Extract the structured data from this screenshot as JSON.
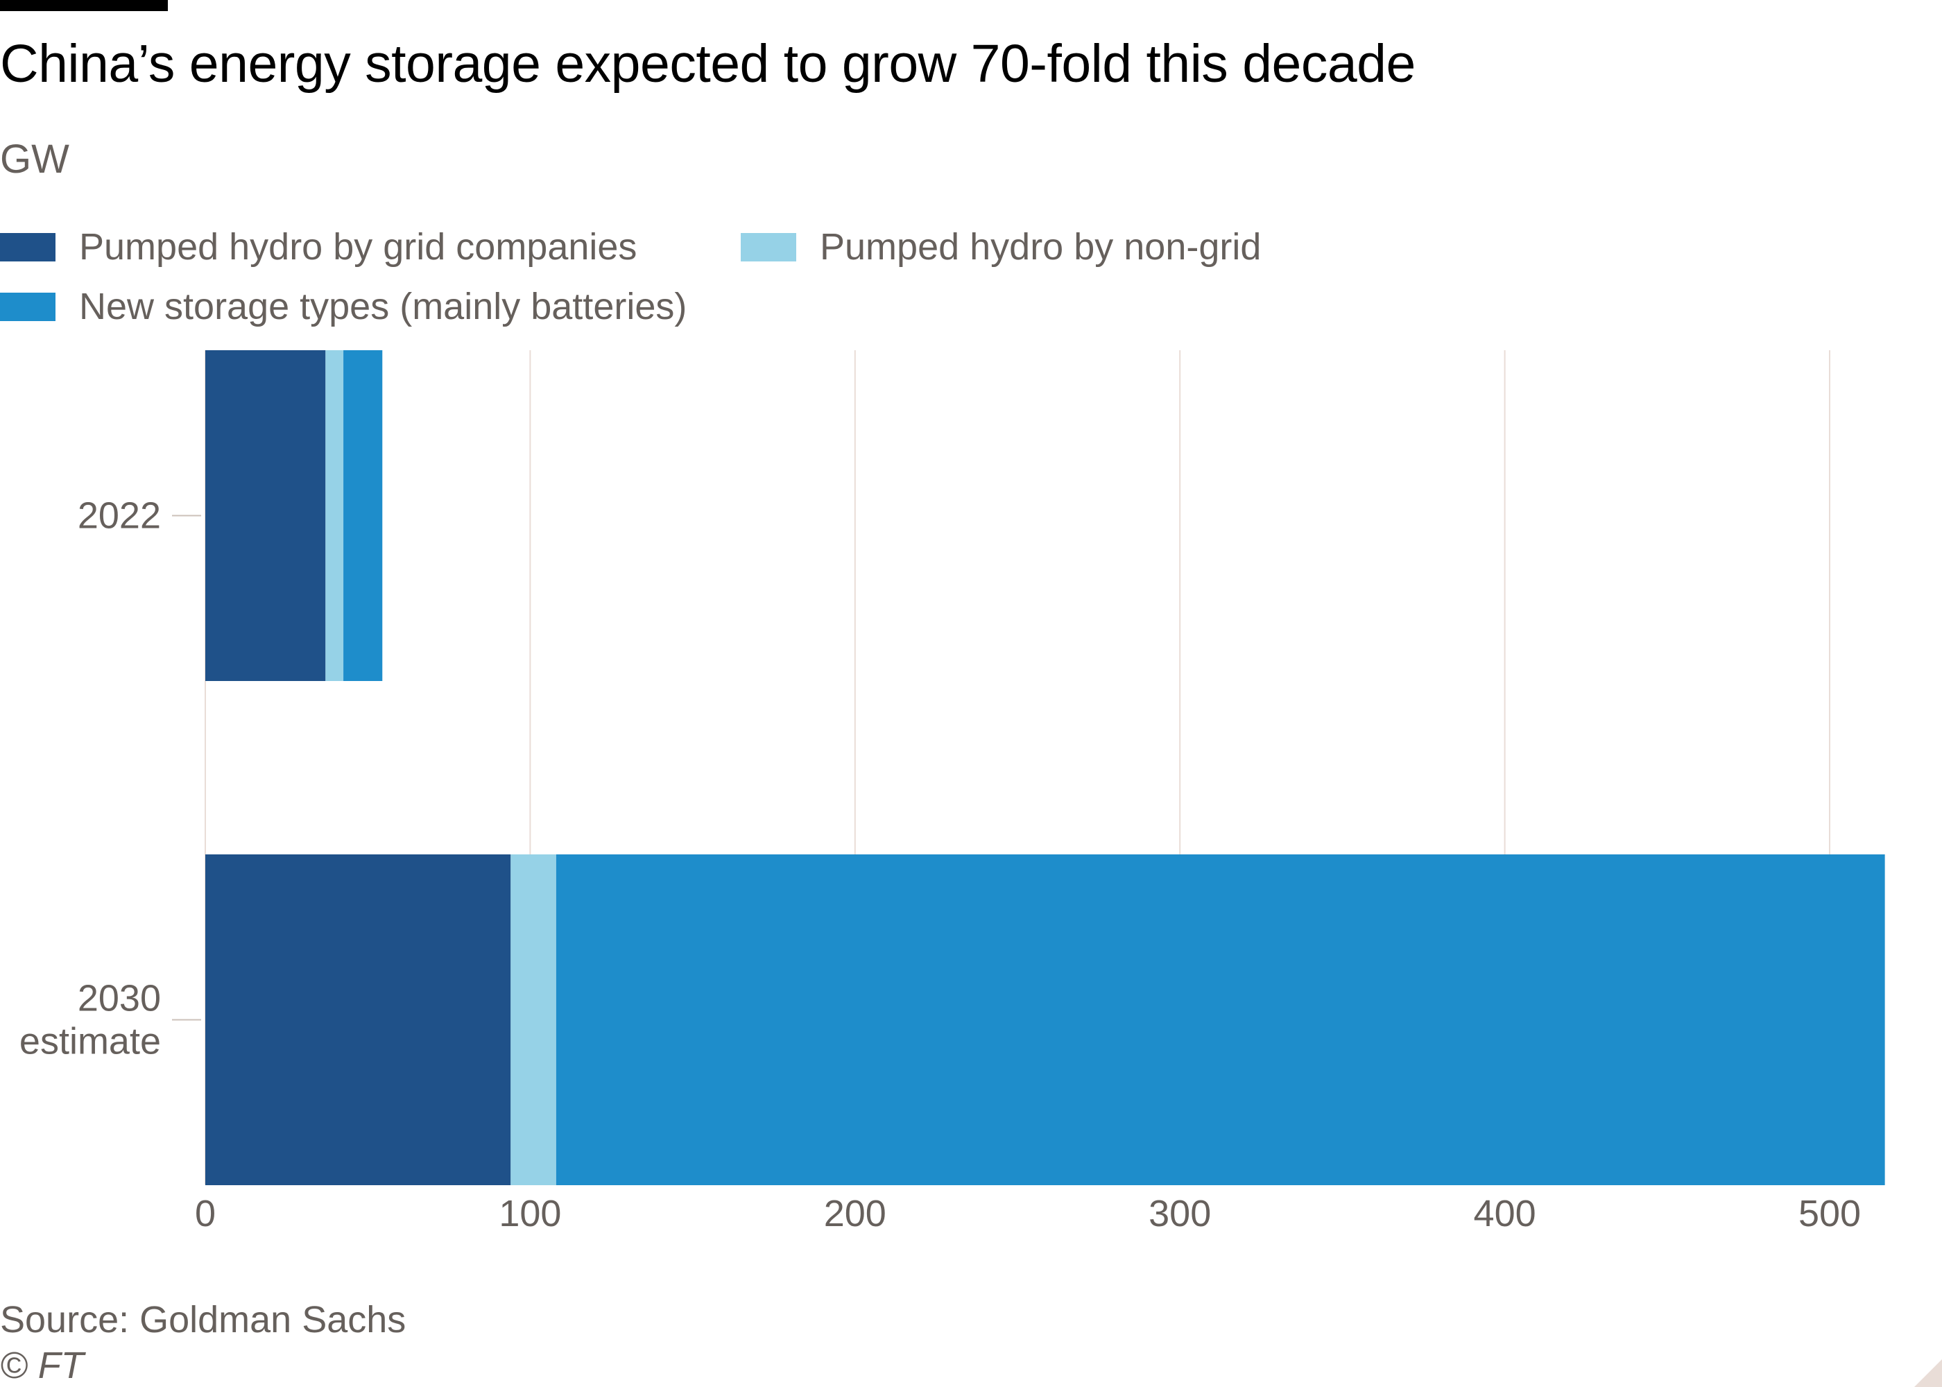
{
  "header": {
    "title": "China’s energy storage expected to grow 70-fold this decade",
    "unit": "GW"
  },
  "footer": {
    "source": "Source: Goldman Sachs",
    "copyright": "© FT"
  },
  "chart_data": {
    "type": "bar",
    "orientation": "horizontal",
    "stacked": true,
    "title": "China’s energy storage expected to grow 70-fold this decade",
    "subtitle": "GW",
    "categories": [
      [
        "2022"
      ],
      [
        "2030",
        "estimate"
      ]
    ],
    "series": [
      {
        "name": "Pumped hydro by grid companies",
        "color": "#1f5189",
        "values": [
          37,
          94
        ]
      },
      {
        "name": "Pumped hydro by non-grid",
        "color": "#96d2e7",
        "values": [
          5.5,
          14
        ]
      },
      {
        "name": "New storage types (mainly batteries)",
        "color": "#1e8dcb",
        "values": [
          12,
          409
        ]
      }
    ],
    "xlim": [
      0,
      520
    ],
    "xticks": [
      0,
      100,
      200,
      300,
      400,
      500
    ],
    "grid": true,
    "legend_position": "top-left"
  }
}
